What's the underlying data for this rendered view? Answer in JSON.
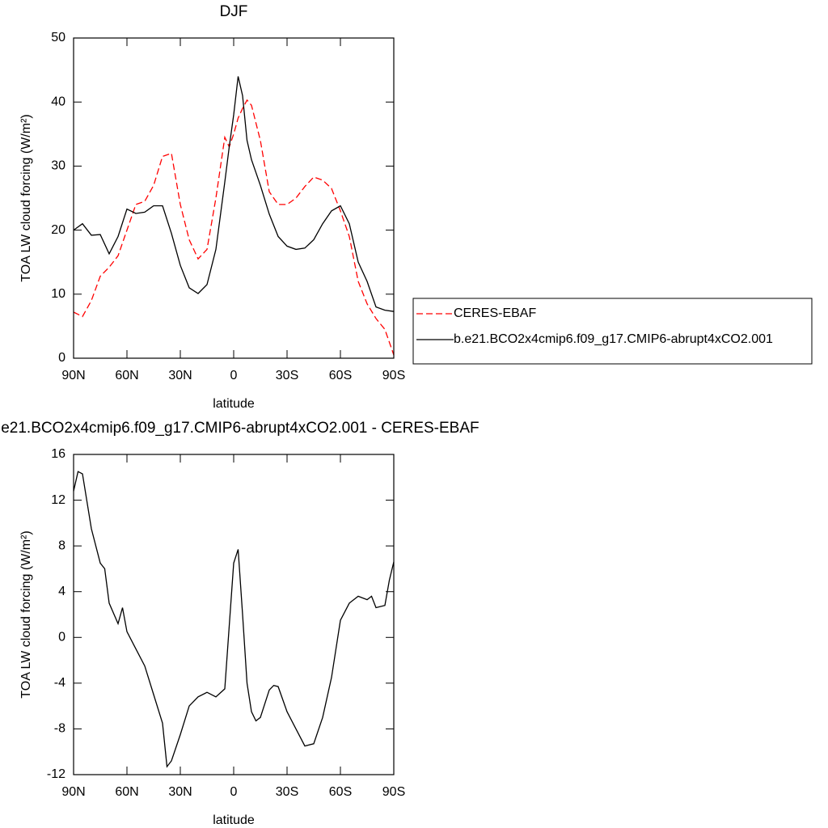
{
  "chart_data": [
    {
      "type": "line",
      "title": "DJF",
      "xlabel": "latitude",
      "ylabel": "TOA LW cloud forcing (W/m²)",
      "x": [
        90,
        85,
        80,
        75,
        70,
        65,
        60,
        55,
        50,
        45,
        40,
        35,
        30,
        25,
        20,
        15,
        10,
        5,
        2.5,
        0,
        -2.5,
        -5,
        -7.5,
        -10,
        -15,
        -20,
        -25,
        -30,
        -35,
        -40,
        -45,
        -50,
        -55,
        -60,
        -65,
        -70,
        -75,
        -80,
        -85,
        -90
      ],
      "series": [
        {
          "name": "CERES-EBAF",
          "color": "#ff0000",
          "dash": "dashed",
          "values": [
            7.2,
            6.5,
            9,
            12.8,
            14.2,
            16,
            20,
            24,
            24.5,
            27,
            31.5,
            32,
            24,
            18.5,
            15.5,
            17,
            25,
            34.5,
            33,
            35,
            37.5,
            39,
            40.3,
            39.5,
            34,
            26,
            24,
            24,
            25,
            26.8,
            28.3,
            27.8,
            26.5,
            23,
            19,
            12,
            8.5,
            6.2,
            4.5,
            0.5
          ]
        },
        {
          "name": "b.e21.BCO2x4cmip6.f09_g17.CMIP6-abrupt4xCO2.001",
          "color": "#000000",
          "dash": "solid",
          "values": [
            20,
            21,
            19.2,
            19.3,
            16.3,
            19,
            23.3,
            22.6,
            22.8,
            23.8,
            23.8,
            19.5,
            14.5,
            11,
            10.1,
            11.5,
            17,
            27.5,
            33,
            38,
            44,
            41,
            34,
            31,
            27,
            22.5,
            19,
            17.5,
            17,
            17.2,
            18.5,
            21,
            23,
            23.8,
            21,
            15,
            12,
            8,
            7.5,
            7.3
          ]
        }
      ],
      "xlim": [
        90,
        -90
      ],
      "xticks": [
        {
          "value": 90,
          "label": "90N"
        },
        {
          "value": 60,
          "label": "60N"
        },
        {
          "value": 30,
          "label": "30N"
        },
        0,
        {
          "value": -30,
          "label": "30S"
        },
        {
          "value": -60,
          "label": "60S"
        },
        {
          "value": -90,
          "label": "90S"
        }
      ],
      "ylim": [
        0,
        50
      ],
      "yticks": [
        0,
        10,
        20,
        30,
        40,
        50
      ],
      "legend": "right"
    },
    {
      "type": "line",
      "title": "b.e21.BCO2x4cmip6.f09_g17.CMIP6-abrupt4xCO2.001 - CERES-EBAF",
      "xlabel": "latitude",
      "ylabel": "TOA LW cloud forcing (W/m²)",
      "x": [
        90,
        87.5,
        85,
        80,
        75,
        72.5,
        70,
        65,
        62.5,
        60,
        55,
        50,
        45,
        40,
        37.5,
        35,
        30,
        25,
        20,
        15,
        10,
        5,
        2.5,
        0,
        -2.5,
        -5,
        -7.5,
        -10,
        -12.5,
        -15,
        -20,
        -22.5,
        -25,
        -30,
        -35,
        -40,
        -45,
        -50,
        -55,
        -60,
        -65,
        -70,
        -75,
        -77.5,
        -80,
        -85,
        -87.5,
        -90
      ],
      "color": "#000000",
      "values": [
        12.8,
        14.5,
        14.3,
        9.5,
        6.5,
        6.0,
        3,
        1.2,
        2.6,
        0.5,
        -1,
        -2.5,
        -5,
        -7.5,
        -11.3,
        -10.8,
        -8.5,
        -6,
        -5.2,
        -4.8,
        -5.2,
        -4.5,
        1,
        6.5,
        7.7,
        2,
        -4,
        -6.5,
        -7.3,
        -7,
        -4.6,
        -4.2,
        -4.3,
        -6.5,
        -8,
        -9.5,
        -9.3,
        -7,
        -3.5,
        1.5,
        3,
        3.6,
        3.3,
        3.6,
        2.6,
        2.8,
        5,
        6.6
      ],
      "xlim": [
        90,
        -90
      ],
      "xticks": [
        {
          "value": 90,
          "label": "90N"
        },
        {
          "value": 60,
          "label": "60N"
        },
        {
          "value": 30,
          "label": "30N"
        },
        0,
        {
          "value": -30,
          "label": "30S"
        },
        {
          "value": -60,
          "label": "60S"
        },
        {
          "value": -90,
          "label": "90S"
        }
      ],
      "ylim": [
        -12,
        16
      ],
      "yticks": [
        -12,
        -8,
        -4,
        0,
        4,
        8,
        12,
        16
      ]
    }
  ]
}
